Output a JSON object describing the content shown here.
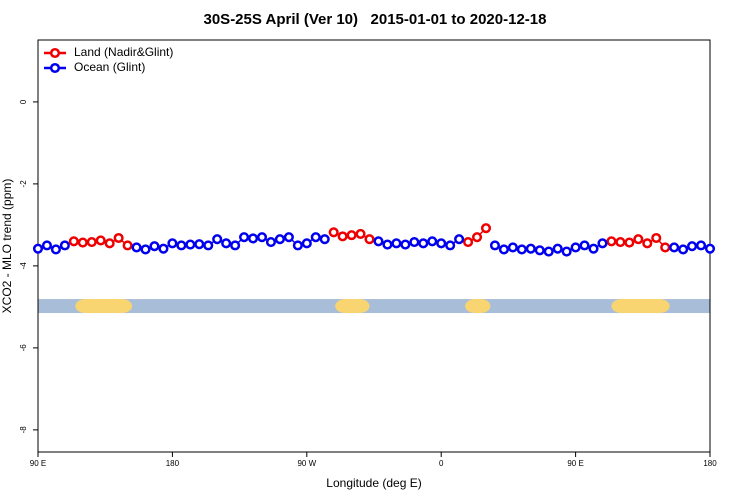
{
  "chart_data": {
    "type": "line",
    "title": "30S-25S April (Ver 10)   2015-01-01 to 2020-12-18",
    "x_label": "Longitude (deg E)",
    "y_label": "XCO2 - MLO trend (ppm)",
    "xlim": [
      90,
      540
    ],
    "ylim": [
      -8.54,
      1.51
    ],
    "xticks": [
      {
        "value": 90,
        "label": "90 E"
      },
      180,
      {
        "value": 270,
        "label": "90 W"
      },
      {
        "value": 360,
        "label": "0"
      },
      {
        "value": 450,
        "label": "90 E"
      },
      {
        "value": 540,
        "label": "180"
      }
    ],
    "yticks": [
      0,
      -2,
      -4,
      -6,
      -8
    ],
    "legend": "top-left",
    "x": [
      90,
      96,
      102,
      108,
      114,
      120,
      126,
      132,
      138,
      144,
      150,
      156,
      162,
      168,
      174,
      180,
      186,
      192,
      198,
      204,
      210,
      216,
      222,
      228,
      234,
      240,
      246,
      252,
      258,
      264,
      270,
      276,
      282,
      288,
      294,
      300,
      306,
      312,
      318,
      324,
      330,
      336,
      342,
      348,
      354,
      360,
      366,
      372,
      378,
      384,
      390,
      396,
      402,
      408,
      414,
      420,
      426,
      432,
      438,
      444,
      450,
      456,
      462,
      468,
      474,
      480,
      486,
      492,
      498,
      504,
      510,
      516,
      522,
      528,
      534,
      540
    ],
    "series": [
      {
        "name": "Land (Nadir&Glint)",
        "color": "#ee0000",
        "values": [
          null,
          null,
          null,
          null,
          -3.4,
          -3.43,
          -3.42,
          -3.38,
          -3.45,
          -3.32,
          -3.5,
          null,
          null,
          null,
          null,
          null,
          null,
          null,
          null,
          null,
          null,
          null,
          null,
          null,
          null,
          null,
          null,
          null,
          null,
          null,
          null,
          null,
          null,
          -3.18,
          -3.28,
          -3.25,
          -3.22,
          -3.35,
          null,
          null,
          null,
          null,
          null,
          null,
          null,
          null,
          null,
          null,
          -3.42,
          -3.3,
          -3.08,
          null,
          null,
          null,
          null,
          null,
          null,
          null,
          null,
          null,
          null,
          null,
          null,
          null,
          -3.4,
          -3.42,
          -3.43,
          -3.35,
          -3.45,
          -3.32,
          -3.55,
          null,
          null,
          null,
          null,
          null
        ]
      },
      {
        "name": "Ocean (Glint)",
        "color": "#0000ee",
        "values": [
          -3.58,
          -3.5,
          -3.6,
          -3.5,
          null,
          null,
          null,
          null,
          null,
          null,
          null,
          -3.55,
          -3.6,
          -3.52,
          -3.58,
          -3.45,
          -3.5,
          -3.48,
          -3.47,
          -3.5,
          -3.35,
          -3.45,
          -3.5,
          -3.3,
          -3.33,
          -3.3,
          -3.42,
          -3.35,
          -3.3,
          -3.5,
          -3.45,
          -3.3,
          -3.35,
          null,
          null,
          null,
          null,
          null,
          -3.4,
          -3.48,
          -3.45,
          -3.48,
          -3.42,
          -3.45,
          -3.4,
          -3.45,
          -3.5,
          -3.35,
          null,
          null,
          null,
          -3.5,
          -3.6,
          -3.55,
          -3.6,
          -3.58,
          -3.62,
          -3.65,
          -3.58,
          -3.65,
          -3.55,
          -3.5,
          -3.58,
          -3.45,
          null,
          null,
          null,
          null,
          null,
          null,
          null,
          -3.55,
          -3.6,
          -3.52,
          -3.5,
          -3.58
        ]
      }
    ],
    "mask": {
      "y": -4.98,
      "ocean_color": "#a8bdd8",
      "land_color": "#f8d570",
      "land": [
        [
          115,
          153
        ],
        [
          289,
          312
        ],
        [
          376,
          393
        ],
        [
          474,
          513
        ]
      ]
    }
  }
}
